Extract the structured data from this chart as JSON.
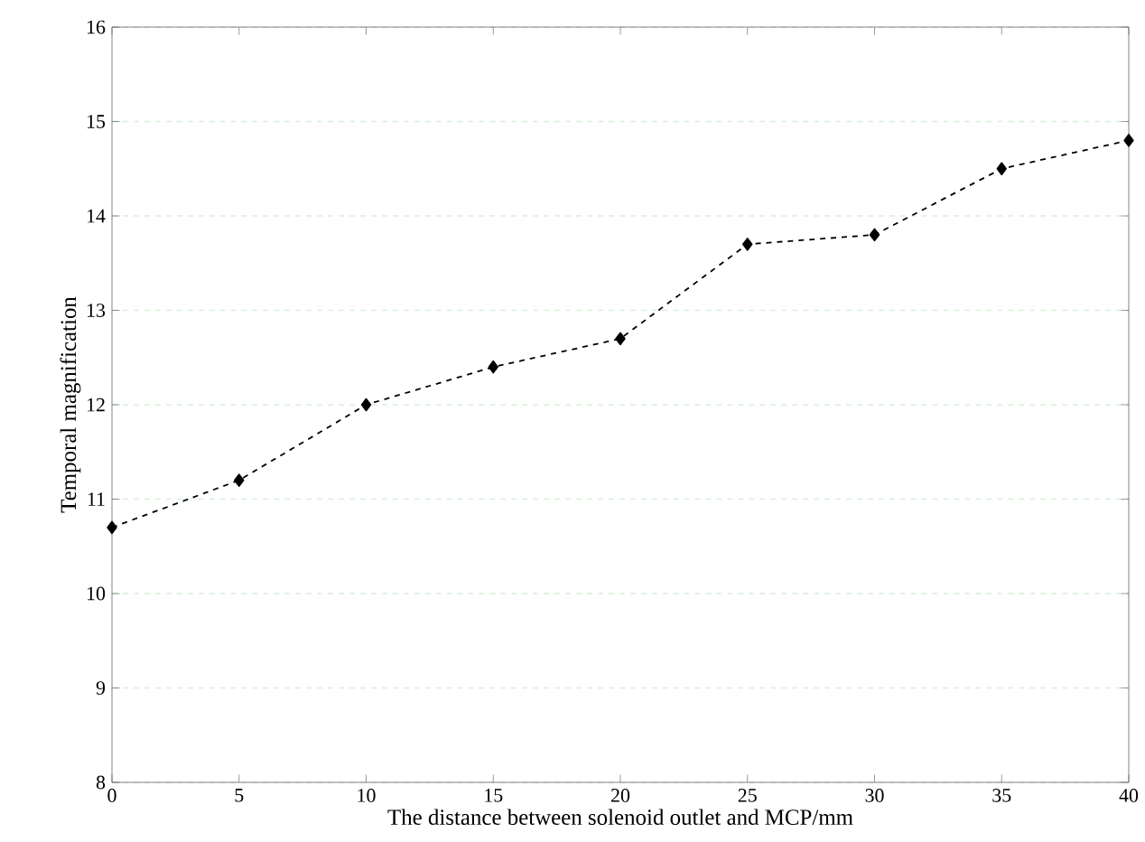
{
  "chart_data": {
    "type": "line",
    "xlabel": "The distance between solenoid outlet and MCP/mm",
    "ylabel": "Temporal magnification",
    "x": [
      0,
      5,
      10,
      15,
      20,
      25,
      30,
      35,
      40
    ],
    "series": [
      {
        "color": "#000000",
        "values": [
          10.7,
          11.2,
          12.0,
          12.4,
          12.7,
          13.7,
          13.8,
          14.5,
          14.8
        ]
      }
    ],
    "xlim": [
      0,
      40
    ],
    "ylim": [
      8,
      16
    ],
    "xticks": [
      0,
      5,
      10,
      15,
      20,
      25,
      30,
      35,
      40
    ],
    "yticks": [
      8,
      9,
      10,
      11,
      12,
      13,
      14,
      15,
      16
    ],
    "grid": "y",
    "marker": "diamond",
    "line_style": "dashed"
  }
}
